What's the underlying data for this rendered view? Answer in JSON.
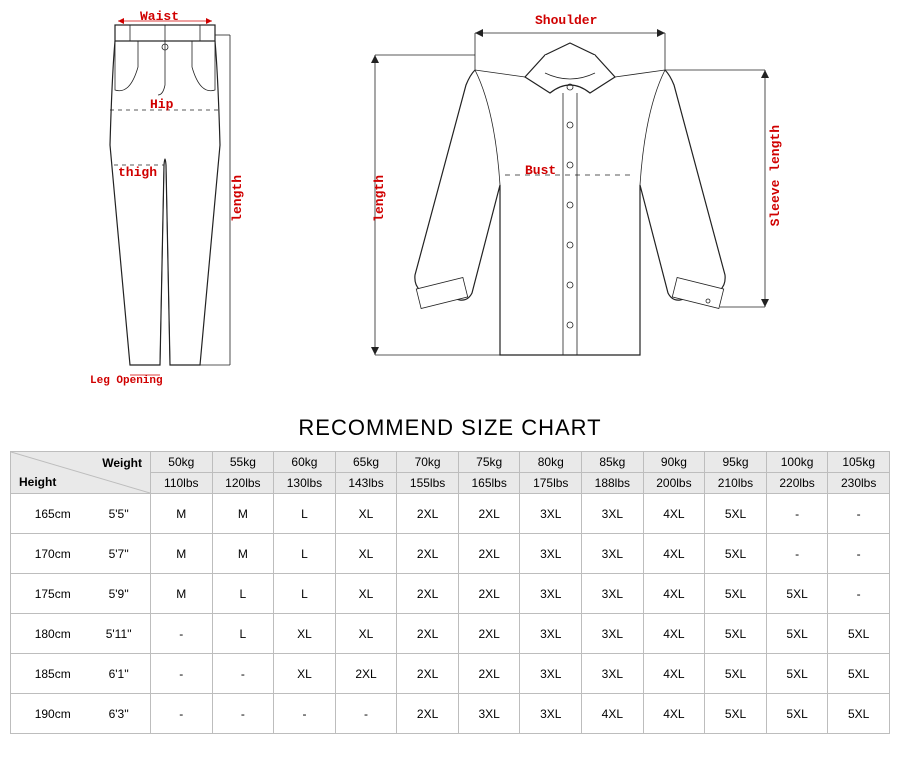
{
  "diagram": {
    "pants": {
      "waist": "Waist",
      "hip": "Hip",
      "thigh": "thigh",
      "length": "length",
      "leg_opening": "Leg Opening"
    },
    "shirt": {
      "shoulder": "Shoulder",
      "bust": "Bust",
      "length": "length",
      "sleeve_length": "Sleeve length"
    },
    "colors": {
      "label": "#d00000",
      "line": "#222222"
    }
  },
  "chart": {
    "title": "RECOMMEND SIZE CHART",
    "header": {
      "weight_label": "Weight",
      "height_label": "Height"
    },
    "weights": [
      {
        "kg": "50kg",
        "lbs": "110lbs"
      },
      {
        "kg": "55kg",
        "lbs": "120lbs"
      },
      {
        "kg": "60kg",
        "lbs": "130lbs"
      },
      {
        "kg": "65kg",
        "lbs": "143lbs"
      },
      {
        "kg": "70kg",
        "lbs": "155lbs"
      },
      {
        "kg": "75kg",
        "lbs": "165lbs"
      },
      {
        "kg": "80kg",
        "lbs": "175lbs"
      },
      {
        "kg": "85kg",
        "lbs": "188lbs"
      },
      {
        "kg": "90kg",
        "lbs": "200lbs"
      },
      {
        "kg": "95kg",
        "lbs": "210lbs"
      },
      {
        "kg": "100kg",
        "lbs": "220lbs"
      },
      {
        "kg": "105kg",
        "lbs": "230lbs"
      }
    ],
    "heights": [
      {
        "cm": "165cm",
        "ft": "5'5''"
      },
      {
        "cm": "170cm",
        "ft": "5'7''"
      },
      {
        "cm": "175cm",
        "ft": "5'9''"
      },
      {
        "cm": "180cm",
        "ft": "5'11''"
      },
      {
        "cm": "185cm",
        "ft": "6'1''"
      },
      {
        "cm": "190cm",
        "ft": "6'3''"
      }
    ],
    "rows": [
      [
        "M",
        "M",
        "L",
        "XL",
        "2XL",
        "2XL",
        "3XL",
        "3XL",
        "4XL",
        "5XL",
        "-",
        "-"
      ],
      [
        "M",
        "M",
        "L",
        "XL",
        "2XL",
        "2XL",
        "3XL",
        "3XL",
        "4XL",
        "5XL",
        "-",
        "-"
      ],
      [
        "M",
        "L",
        "L",
        "XL",
        "2XL",
        "2XL",
        "3XL",
        "3XL",
        "4XL",
        "5XL",
        "5XL",
        "-"
      ],
      [
        "-",
        "L",
        "XL",
        "XL",
        "2XL",
        "2XL",
        "3XL",
        "3XL",
        "4XL",
        "5XL",
        "5XL",
        "5XL"
      ],
      [
        "-",
        "-",
        "XL",
        "2XL",
        "2XL",
        "2XL",
        "3XL",
        "3XL",
        "4XL",
        "5XL",
        "5XL",
        "5XL"
      ],
      [
        "-",
        "-",
        "-",
        "-",
        "2XL",
        "3XL",
        "3XL",
        "4XL",
        "4XL",
        "5XL",
        "5XL",
        "5XL"
      ]
    ]
  }
}
